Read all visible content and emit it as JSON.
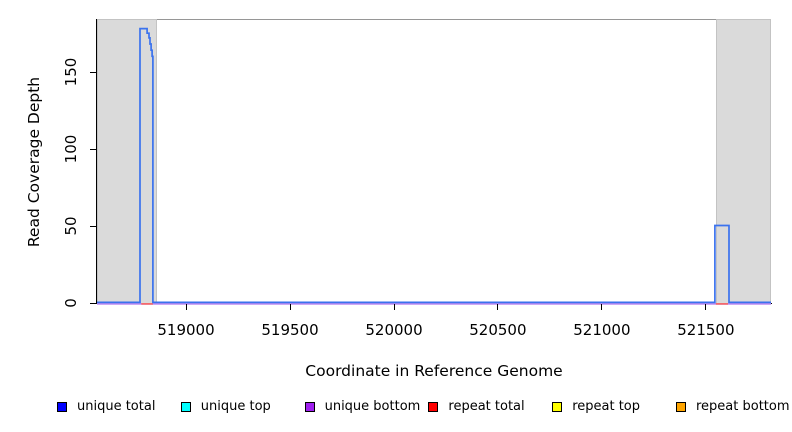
{
  "chart_data": {
    "type": "line",
    "title": "",
    "xlabel": "Coordinate in Reference Genome",
    "ylabel": "Read Coverage Depth",
    "xlim": [
      518572,
      521813
    ],
    "ylim": [
      0,
      184
    ],
    "grid": false,
    "legend_position": "bottom",
    "x_ticks": [
      {
        "value": 519000,
        "label": "519000"
      },
      {
        "value": 519500,
        "label": "519500"
      },
      {
        "value": 520000,
        "label": "520000"
      },
      {
        "value": 520500,
        "label": "520500"
      },
      {
        "value": 521000,
        "label": "521000"
      },
      {
        "value": 521500,
        "label": "521500"
      }
    ],
    "y_ticks": [
      {
        "value": 0,
        "label": "0"
      },
      {
        "value": 50,
        "label": "50"
      },
      {
        "value": 100,
        "label": "100"
      },
      {
        "value": 150,
        "label": "150"
      }
    ],
    "shaded_regions": [
      {
        "x_start": 518572,
        "x_end": 518861,
        "color": "#dadada"
      },
      {
        "x_start": 521548,
        "x_end": 521813,
        "color": "#dadada"
      }
    ],
    "series": [
      {
        "name": "unique total",
        "legend_color": "#0000ff",
        "line_color": "#3a72ee",
        "segments": [
          [
            [
              518572,
              0
            ],
            [
              518779,
              0
            ],
            [
              518779,
              178
            ],
            [
              518813,
              178
            ],
            [
              518813,
              175
            ],
            [
              518822,
              175
            ],
            [
              518822,
              172
            ],
            [
              518827,
              172
            ],
            [
              518827,
              168
            ],
            [
              518832,
              168
            ],
            [
              518832,
              164
            ],
            [
              518837,
              164
            ],
            [
              518837,
              160
            ],
            [
              518841,
              160
            ],
            [
              518841,
              0
            ],
            [
              521543,
              0
            ],
            [
              521543,
              50
            ],
            [
              521611,
              50
            ],
            [
              521611,
              0
            ],
            [
              521813,
              0
            ]
          ]
        ]
      },
      {
        "name": "unique top",
        "legend_color": "#00ffff",
        "line_color": "#00ffff",
        "segments": []
      },
      {
        "name": "unique bottom",
        "legend_color": "#a020f0",
        "line_color": "#bd8bf0",
        "segments": [
          [
            [
              518572,
              0
            ],
            [
              521813,
              0
            ]
          ]
        ]
      },
      {
        "name": "repeat total",
        "legend_color": "#ff0000",
        "line_color": "#f56a6a",
        "segments": [
          [
            [
              518785,
              0
            ],
            [
              518841,
              0
            ]
          ],
          [
            [
              521548,
              0
            ],
            [
              521606,
              0
            ]
          ]
        ]
      },
      {
        "name": "repeat top",
        "legend_color": "#ffff00",
        "line_color": "#ffff00",
        "segments": []
      },
      {
        "name": "repeat bottom",
        "legend_color": "#ffa500",
        "line_color": "#ffa500",
        "segments": []
      }
    ],
    "draw_order": [
      1,
      4,
      5,
      2,
      3,
      0
    ]
  }
}
